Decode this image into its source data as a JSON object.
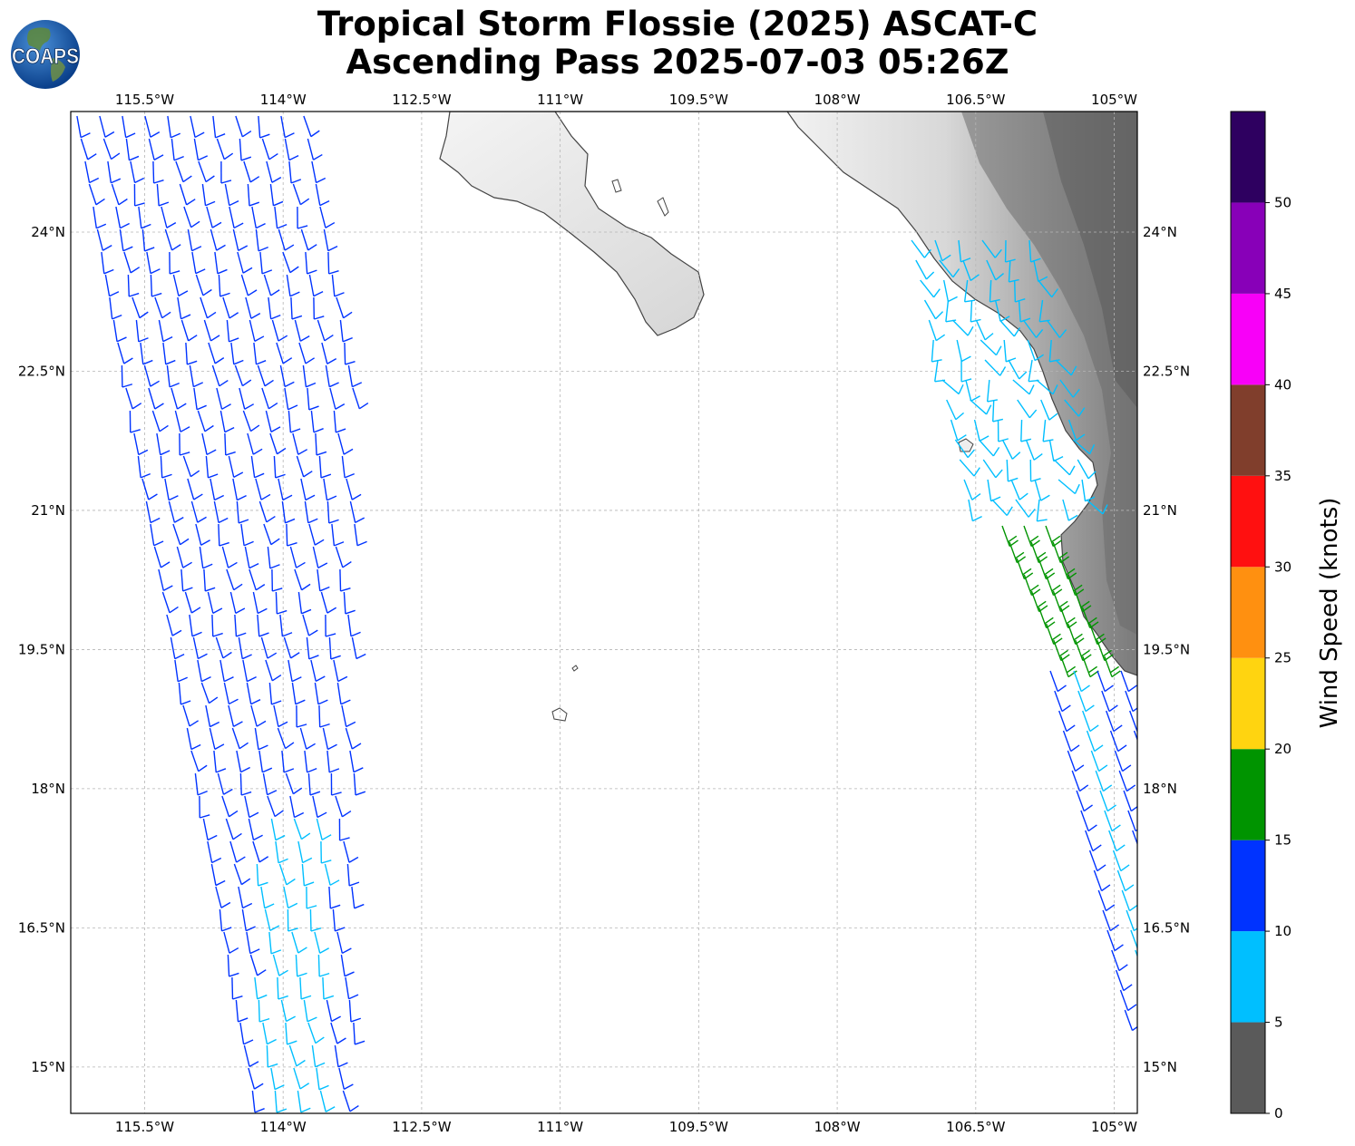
{
  "title": {
    "line1": "Tropical Storm Flossie (2025) ASCAT-C",
    "line2": "Ascending Pass 2025-07-03 05:26Z"
  },
  "logo": {
    "text": "COAPS"
  },
  "map": {
    "lon_range": [
      -116.3,
      -104.75
    ],
    "lat_range": [
      14.5,
      25.3
    ],
    "lon_ticks": [
      -115.5,
      -114,
      -112.5,
      -111,
      -109.5,
      -108,
      -106.5,
      -105
    ],
    "lon_tick_labels": [
      "115.5°W",
      "114°W",
      "112.5°W",
      "111°W",
      "109.5°W",
      "108°W",
      "106.5°W",
      "105°W"
    ],
    "lat_ticks": [
      24,
      22.5,
      21,
      19.5,
      18,
      16.5,
      15
    ],
    "lat_tick_labels": [
      "24°N",
      "22.5°N",
      "21°N",
      "19.5°N",
      "18°N",
      "16.5°N",
      "15°N"
    ],
    "grid": true,
    "coastline_color": "#444444",
    "terrain": "grayscale topography"
  },
  "colorbar": {
    "label": "Wind Speed (knots)",
    "ticks": [
      "0",
      "5",
      "10",
      "15",
      "20",
      "25",
      "30",
      "35",
      "40",
      "45",
      "50"
    ],
    "bins": [
      {
        "min": 0,
        "max": 5,
        "color": "#5a5a5a"
      },
      {
        "min": 5,
        "max": 10,
        "color": "#00bfff"
      },
      {
        "min": 10,
        "max": 15,
        "color": "#0033ff"
      },
      {
        "min": 15,
        "max": 20,
        "color": "#009400"
      },
      {
        "min": 20,
        "max": 25,
        "color": "#ffd410"
      },
      {
        "min": 25,
        "max": 30,
        "color": "#ff9010"
      },
      {
        "min": 30,
        "max": 35,
        "color": "#ff1010"
      },
      {
        "min": 35,
        "max": 40,
        "color": "#803e2c"
      },
      {
        "min": 40,
        "max": 45,
        "color": "#f800f8"
      },
      {
        "min": 45,
        "max": 50,
        "color": "#8800b8"
      },
      {
        "min": 50,
        "max": 55,
        "color": "#2e0060"
      }
    ]
  }
}
